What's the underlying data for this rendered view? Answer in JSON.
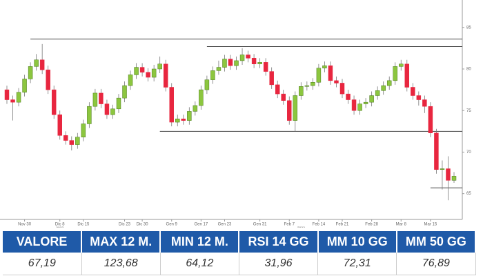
{
  "chart_data": {
    "type": "candlestick",
    "categories": [
      null,
      null,
      null,
      "Nov 30",
      null,
      null,
      null,
      null,
      null,
      "Dic 8",
      null,
      null,
      null,
      "Dic 15",
      null,
      null,
      null,
      null,
      null,
      null,
      "Dic 23",
      null,
      null,
      "Dic 30",
      null,
      null,
      null,
      null,
      "Gen 9",
      null,
      null,
      null,
      null,
      "Gen 17",
      null,
      null,
      null,
      "Gen 23",
      null,
      null,
      null,
      null,
      null,
      "Gen 31",
      null,
      null,
      null,
      null,
      "Feb 7",
      null,
      null,
      null,
      null,
      "Feb 14",
      null,
      null,
      null,
      "Feb 21",
      null,
      null,
      null,
      null,
      "Feb 28",
      null,
      null,
      null,
      null,
      "Mar 8",
      null,
      null,
      null,
      null,
      "Mar 15",
      null,
      null,
      null,
      null
    ],
    "year_labels": [
      {
        "label": "2022",
        "index": 9
      },
      {
        "label": "2023",
        "index": 50
      }
    ],
    "open": [
      77.5,
      76.3,
      76.0,
      77.2,
      78.8,
      80.3,
      81.1,
      79.9,
      77.5,
      74.5,
      72.0,
      71.4,
      70.9,
      71.8,
      73.4,
      75.5,
      77.1,
      75.8,
      74.5,
      75.2,
      76.5,
      78.0,
      79.3,
      80.2,
      79.6,
      79.0,
      80.0,
      80.6,
      77.8,
      73.6,
      74.0,
      73.8,
      74.9,
      75.6,
      77.5,
      78.7,
      79.8,
      80.2,
      81.2,
      80.4,
      81.0,
      81.7,
      81.3,
      80.6,
      80.8,
      79.7,
      78.1,
      77.0,
      76.2,
      73.8,
      76.8,
      77.9,
      78.0,
      78.4,
      80.1,
      80.4,
      78.6,
      78.3,
      77.0,
      76.3,
      75.0,
      75.8,
      76.0,
      76.8,
      77.4,
      78.0,
      78.6,
      80.3,
      80.6,
      77.8,
      76.8,
      76.3,
      75.5,
      72.3,
      67.9,
      68.0,
      66.6
    ],
    "high": [
      78.0,
      76.8,
      77.7,
      79.3,
      80.8,
      81.8,
      83.0,
      80.4,
      78.0,
      75.0,
      72.5,
      71.9,
      72.3,
      73.9,
      76.0,
      77.6,
      77.6,
      76.3,
      75.7,
      77.0,
      78.5,
      79.8,
      80.7,
      80.7,
      80.1,
      80.5,
      81.5,
      81.1,
      78.3,
      74.5,
      74.5,
      75.4,
      76.1,
      78.0,
      79.2,
      80.3,
      81.0,
      81.7,
      81.7,
      81.5,
      82.5,
      82.2,
      81.8,
      81.3,
      81.3,
      80.2,
      78.6,
      77.5,
      76.7,
      77.3,
      78.4,
      78.5,
      78.9,
      80.6,
      80.9,
      80.9,
      79.1,
      78.8,
      77.5,
      76.8,
      76.3,
      76.5,
      77.3,
      77.9,
      78.5,
      79.1,
      80.8,
      81.1,
      81.1,
      78.3,
      77.3,
      76.8,
      76.0,
      72.8,
      69.0,
      69.5,
      67.6
    ],
    "low": [
      75.8,
      73.8,
      75.5,
      76.7,
      78.3,
      79.8,
      79.4,
      77.0,
      74.0,
      71.5,
      70.9,
      70.2,
      70.4,
      71.3,
      72.9,
      75.0,
      75.3,
      74.0,
      74.0,
      74.7,
      76.0,
      77.5,
      78.8,
      79.1,
      78.5,
      78.5,
      79.5,
      77.3,
      73.1,
      73.1,
      73.3,
      73.3,
      74.4,
      75.1,
      77.0,
      78.2,
      79.3,
      79.7,
      79.9,
      79.9,
      80.5,
      80.8,
      80.1,
      80.1,
      79.2,
      77.6,
      76.5,
      75.7,
      73.3,
      72.5,
      76.3,
      77.4,
      77.5,
      77.9,
      79.6,
      78.1,
      77.8,
      76.5,
      75.8,
      74.5,
      74.5,
      75.3,
      75.5,
      76.3,
      76.9,
      77.5,
      78.1,
      79.8,
      77.3,
      76.3,
      75.6,
      74.7,
      71.8,
      67.4,
      65.5,
      64.2,
      66.3
    ],
    "close": [
      76.3,
      76.0,
      77.2,
      78.8,
      80.3,
      81.1,
      79.9,
      77.5,
      74.5,
      72.0,
      71.4,
      70.9,
      71.8,
      73.4,
      75.5,
      77.1,
      75.8,
      74.5,
      75.2,
      76.5,
      78.0,
      79.3,
      80.2,
      79.6,
      79.0,
      80.0,
      80.6,
      77.8,
      73.6,
      74.0,
      73.8,
      74.9,
      75.6,
      77.5,
      78.7,
      79.8,
      80.2,
      81.2,
      80.4,
      81.0,
      81.7,
      81.3,
      80.6,
      80.8,
      79.7,
      78.1,
      77.0,
      76.2,
      73.8,
      76.8,
      77.9,
      78.0,
      78.4,
      80.1,
      80.4,
      78.6,
      78.3,
      77.0,
      76.3,
      75.0,
      75.8,
      76.0,
      76.8,
      77.4,
      78.0,
      78.6,
      80.3,
      80.6,
      77.8,
      76.8,
      76.3,
      75.5,
      72.3,
      67.9,
      68.0,
      66.6,
      67.1
    ],
    "up_color": "#8cc63f",
    "down_color": "#e8263f",
    "hlines": [
      {
        "y": 83.6,
        "from": 4
      },
      {
        "y": 82.7,
        "from": 34
      },
      {
        "y": 72.5,
        "from": 26
      },
      {
        "y": 65.7,
        "from": 72
      }
    ],
    "ylim": [
      61.9,
      88.3
    ],
    "yticks": [
      65,
      70,
      75,
      80,
      85
    ]
  },
  "table": {
    "header": [
      "VALORE",
      "MAX 12 M.",
      "MIN 12 M.",
      "RSI 14 GG",
      "MM 10 GG",
      "MM 50 GG"
    ],
    "row": [
      "67,19",
      "123,68",
      "64,12",
      "31,96",
      "72,31",
      "76,89"
    ]
  }
}
